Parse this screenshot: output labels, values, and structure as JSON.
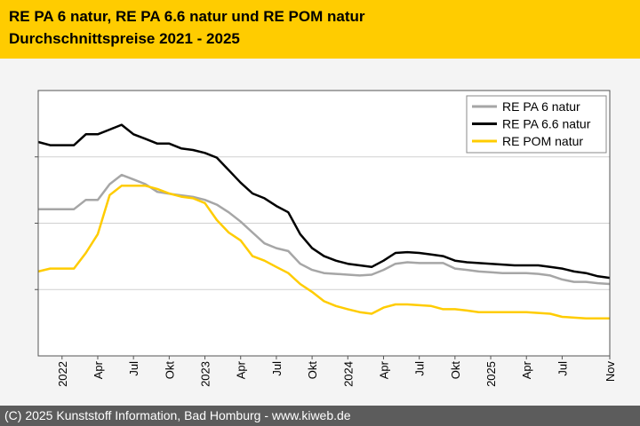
{
  "header": {
    "title_line1": "RE PA 6 natur, RE PA 6.6 natur und RE POM natur",
    "title_line2": "Durchschnittspreise 2021 - 2025"
  },
  "footer": {
    "copyright": "(C) 2025 Kunststoff Information, Bad Homburg - www.kiweb.de"
  },
  "colors": {
    "header_bg": "#ffcc00",
    "footer_bg": "#5c5c5c",
    "pa6": "#a6a6a6",
    "pa66": "#000000",
    "pom": "#ffcc00"
  },
  "chart_data": {
    "type": "line",
    "title": "RE PA 6 natur, RE PA 6.6 natur und RE POM natur Durchschnittspreise 2021 - 2025",
    "xlabel": "",
    "ylabel": "",
    "y_tick_labels_shown": false,
    "ylim": [
      0,
      100
    ],
    "grid": true,
    "legend_position": "top-right",
    "x_range": [
      "2021-11",
      "2025-11"
    ],
    "x_ticks": [
      {
        "date": "2022-01",
        "label": "2022"
      },
      {
        "date": "2022-04",
        "label": "Apr"
      },
      {
        "date": "2022-07",
        "label": "Jul"
      },
      {
        "date": "2022-10",
        "label": "Okt"
      },
      {
        "date": "2023-01",
        "label": "2023"
      },
      {
        "date": "2023-04",
        "label": "Apr"
      },
      {
        "date": "2023-07",
        "label": "Jul"
      },
      {
        "date": "2023-10",
        "label": "Okt"
      },
      {
        "date": "2024-01",
        "label": "2024"
      },
      {
        "date": "2024-04",
        "label": "Apr"
      },
      {
        "date": "2024-07",
        "label": "Jul"
      },
      {
        "date": "2024-10",
        "label": "Okt"
      },
      {
        "date": "2025-01",
        "label": "2025"
      },
      {
        "date": "2025-04",
        "label": "Apr"
      },
      {
        "date": "2025-07",
        "label": "Jul"
      },
      {
        "date": "2025-11",
        "label": "Nov"
      }
    ],
    "series": [
      {
        "name": "RE PA 6 natur",
        "color": "#a6a6a6",
        "points": [
          [
            "2021-11",
            55.3
          ],
          [
            "2021-12",
            55.3
          ],
          [
            "2022-01",
            55.3
          ],
          [
            "2022-02",
            55.3
          ],
          [
            "2022-03",
            58.8
          ],
          [
            "2022-04",
            58.8
          ],
          [
            "2022-05",
            64.7
          ],
          [
            "2022-06",
            68.2
          ],
          [
            "2022-07",
            66.5
          ],
          [
            "2022-08",
            64.7
          ],
          [
            "2022-09",
            61.8
          ],
          [
            "2022-10",
            61.1
          ],
          [
            "2022-11",
            60.5
          ],
          [
            "2022-12",
            59.9
          ],
          [
            "2023-01",
            58.8
          ],
          [
            "2023-02",
            57.0
          ],
          [
            "2023-03",
            54.1
          ],
          [
            "2023-04",
            50.6
          ],
          [
            "2023-05",
            46.5
          ],
          [
            "2023-06",
            42.4
          ],
          [
            "2023-07",
            40.6
          ],
          [
            "2023-08",
            39.5
          ],
          [
            "2023-09",
            34.7
          ],
          [
            "2023-10",
            32.4
          ],
          [
            "2023-11",
            31.2
          ],
          [
            "2023-12",
            30.9
          ],
          [
            "2024-01",
            30.6
          ],
          [
            "2024-02",
            30.3
          ],
          [
            "2024-03",
            30.6
          ],
          [
            "2024-04",
            32.4
          ],
          [
            "2024-05",
            34.7
          ],
          [
            "2024-06",
            35.3
          ],
          [
            "2024-07",
            35.0
          ],
          [
            "2024-08",
            35.0
          ],
          [
            "2024-09",
            35.0
          ],
          [
            "2024-10",
            32.9
          ],
          [
            "2024-11",
            32.4
          ],
          [
            "2024-12",
            31.8
          ],
          [
            "2025-01",
            31.5
          ],
          [
            "2025-02",
            31.2
          ],
          [
            "2025-03",
            31.2
          ],
          [
            "2025-04",
            31.2
          ],
          [
            "2025-05",
            30.9
          ],
          [
            "2025-06",
            30.3
          ],
          [
            "2025-07",
            28.8
          ],
          [
            "2025-08",
            27.9
          ],
          [
            "2025-09",
            27.9
          ],
          [
            "2025-10",
            27.4
          ],
          [
            "2025-11",
            27.1
          ]
        ]
      },
      {
        "name": "RE PA 6.6 natur",
        "color": "#000000",
        "points": [
          [
            "2021-11",
            80.6
          ],
          [
            "2021-12",
            79.4
          ],
          [
            "2022-01",
            79.4
          ],
          [
            "2022-02",
            79.4
          ],
          [
            "2022-03",
            83.5
          ],
          [
            "2022-04",
            83.5
          ],
          [
            "2022-05",
            85.3
          ],
          [
            "2022-06",
            87.1
          ],
          [
            "2022-07",
            83.5
          ],
          [
            "2022-08",
            81.8
          ],
          [
            "2022-09",
            80.0
          ],
          [
            "2022-10",
            80.0
          ],
          [
            "2022-11",
            78.2
          ],
          [
            "2022-12",
            77.6
          ],
          [
            "2023-01",
            76.5
          ],
          [
            "2023-02",
            74.7
          ],
          [
            "2023-03",
            70.0
          ],
          [
            "2023-04",
            65.3
          ],
          [
            "2023-05",
            61.2
          ],
          [
            "2023-06",
            59.4
          ],
          [
            "2023-07",
            56.5
          ],
          [
            "2023-08",
            54.1
          ],
          [
            "2023-09",
            45.9
          ],
          [
            "2023-10",
            40.6
          ],
          [
            "2023-11",
            37.6
          ],
          [
            "2023-12",
            35.9
          ],
          [
            "2024-01",
            34.7
          ],
          [
            "2024-02",
            34.1
          ],
          [
            "2024-03",
            33.5
          ],
          [
            "2024-04",
            35.9
          ],
          [
            "2024-05",
            38.8
          ],
          [
            "2024-06",
            39.1
          ],
          [
            "2024-07",
            38.8
          ],
          [
            "2024-08",
            38.2
          ],
          [
            "2024-09",
            37.6
          ],
          [
            "2024-10",
            35.9
          ],
          [
            "2024-11",
            35.3
          ],
          [
            "2024-12",
            35.0
          ],
          [
            "2025-01",
            34.7
          ],
          [
            "2025-02",
            34.4
          ],
          [
            "2025-03",
            34.1
          ],
          [
            "2025-04",
            34.1
          ],
          [
            "2025-05",
            34.1
          ],
          [
            "2025-06",
            33.5
          ],
          [
            "2025-07",
            32.9
          ],
          [
            "2025-08",
            31.8
          ],
          [
            "2025-09",
            31.2
          ],
          [
            "2025-10",
            30.0
          ],
          [
            "2025-11",
            29.4
          ]
        ]
      },
      {
        "name": "RE POM natur",
        "color": "#ffcc00",
        "points": [
          [
            "2021-11",
            31.8
          ],
          [
            "2021-12",
            32.9
          ],
          [
            "2022-01",
            32.9
          ],
          [
            "2022-02",
            32.9
          ],
          [
            "2022-03",
            38.8
          ],
          [
            "2022-04",
            45.9
          ],
          [
            "2022-05",
            60.6
          ],
          [
            "2022-06",
            64.1
          ],
          [
            "2022-07",
            64.1
          ],
          [
            "2022-08",
            64.1
          ],
          [
            "2022-09",
            62.9
          ],
          [
            "2022-10",
            61.2
          ],
          [
            "2022-11",
            60.0
          ],
          [
            "2022-12",
            59.4
          ],
          [
            "2023-01",
            57.6
          ],
          [
            "2023-02",
            51.2
          ],
          [
            "2023-03",
            46.5
          ],
          [
            "2023-04",
            43.5
          ],
          [
            "2023-05",
            37.6
          ],
          [
            "2023-06",
            35.9
          ],
          [
            "2023-07",
            33.5
          ],
          [
            "2023-08",
            31.2
          ],
          [
            "2023-09",
            27.1
          ],
          [
            "2023-10",
            24.1
          ],
          [
            "2023-11",
            20.6
          ],
          [
            "2023-12",
            18.8
          ],
          [
            "2024-01",
            17.6
          ],
          [
            "2024-02",
            16.5
          ],
          [
            "2024-03",
            15.9
          ],
          [
            "2024-04",
            18.2
          ],
          [
            "2024-05",
            19.4
          ],
          [
            "2024-06",
            19.4
          ],
          [
            "2024-07",
            19.1
          ],
          [
            "2024-08",
            18.8
          ],
          [
            "2024-09",
            17.6
          ],
          [
            "2024-10",
            17.6
          ],
          [
            "2024-11",
            17.1
          ],
          [
            "2024-12",
            16.5
          ],
          [
            "2025-01",
            16.5
          ],
          [
            "2025-02",
            16.5
          ],
          [
            "2025-03",
            16.5
          ],
          [
            "2025-04",
            16.5
          ],
          [
            "2025-05",
            16.2
          ],
          [
            "2025-06",
            15.9
          ],
          [
            "2025-07",
            14.7
          ],
          [
            "2025-08",
            14.4
          ],
          [
            "2025-09",
            14.1
          ],
          [
            "2025-10",
            14.1
          ],
          [
            "2025-11",
            14.1
          ]
        ]
      }
    ]
  }
}
